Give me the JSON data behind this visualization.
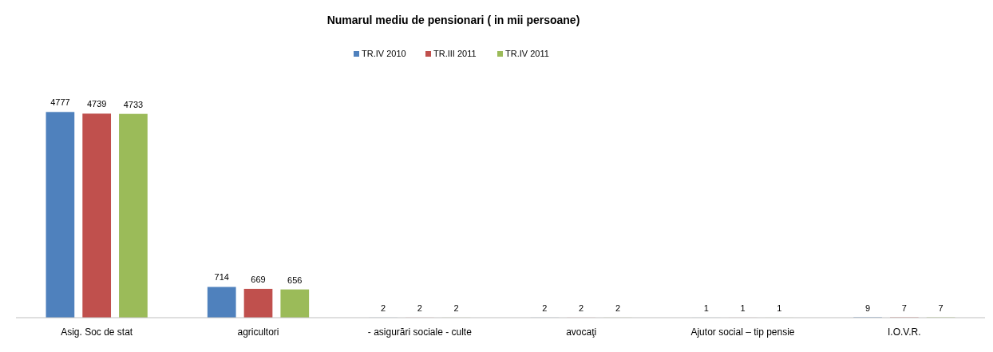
{
  "chart_data": {
    "type": "bar",
    "title": "Numarul mediu de pensionari ( in mii persoane)",
    "categories": [
      "Asig. Soc de stat",
      "agricultori",
      "- asigurări sociale - culte",
      "avocaţi",
      "Ajutor social – tip pensie",
      "I.O.V.R."
    ],
    "series": [
      {
        "name": "TR.IV 2010",
        "color": "#4f81bd",
        "values": [
          4777,
          714,
          2,
          2,
          1,
          9
        ]
      },
      {
        "name": "TR.III 2011",
        "color": "#c0504d",
        "values": [
          4739,
          669,
          2,
          2,
          1,
          7
        ]
      },
      {
        "name": "TR.IV 2011",
        "color": "#9bbb59",
        "values": [
          4733,
          656,
          2,
          2,
          1,
          7
        ]
      }
    ],
    "data_labels": true,
    "legend": "top",
    "grid": false
  }
}
